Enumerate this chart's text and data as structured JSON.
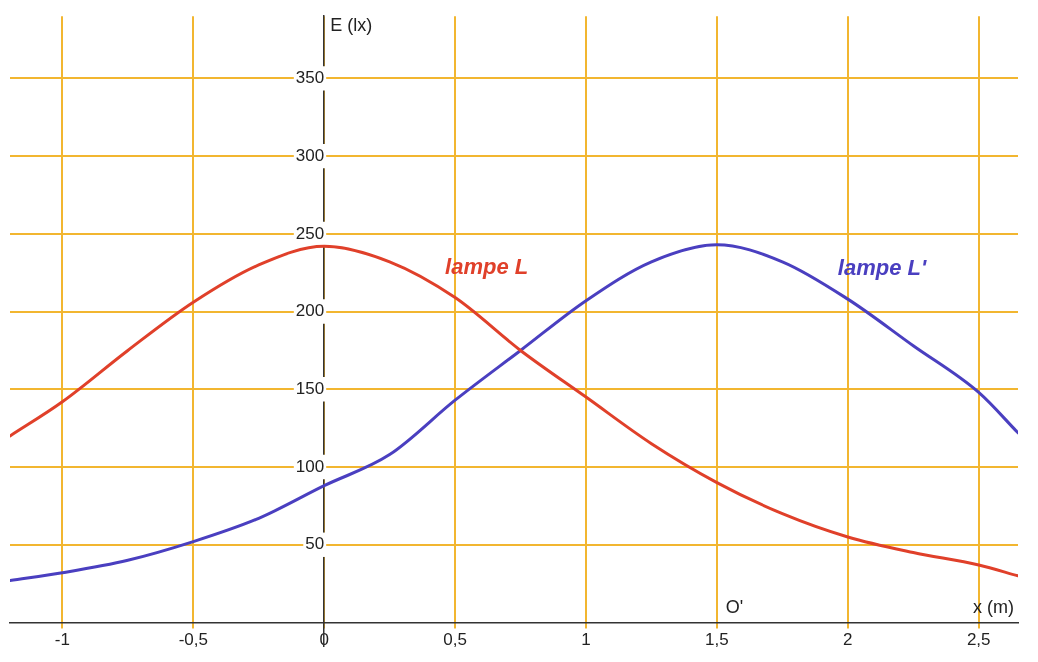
{
  "chart_data": {
    "type": "line",
    "xlabel": "x (m)",
    "ylabel": "E (lx)",
    "xlim": [
      -1.2,
      2.65
    ],
    "ylim": [
      -15,
      390
    ],
    "xticks": [
      {
        "value": -1,
        "label": "-1"
      },
      {
        "value": -0.5,
        "label": "-0,5"
      },
      {
        "value": 0,
        "label": "0"
      },
      {
        "value": 0.5,
        "label": "0,5"
      },
      {
        "value": 1,
        "label": "1"
      },
      {
        "value": 1.5,
        "label": "1,5"
      },
      {
        "value": 2,
        "label": "2"
      },
      {
        "value": 2.5,
        "label": "2,5"
      }
    ],
    "yticks": [
      50,
      100,
      150,
      200,
      250,
      300,
      350
    ],
    "grid": true,
    "legend": false,
    "marker": "none",
    "line_style": "solid",
    "annotations": [
      "O'"
    ],
    "series": [
      {
        "name": "lampe L",
        "color": "#e0402a",
        "x": [
          -1.2,
          -1,
          -0.75,
          -0.5,
          -0.25,
          0,
          0.25,
          0.5,
          0.75,
          1,
          1.25,
          1.5,
          1.75,
          2,
          2.25,
          2.5,
          2.65
        ],
        "values": [
          120,
          142,
          175,
          206,
          230,
          242,
          232,
          209,
          175,
          145,
          115,
          90,
          70,
          55,
          45,
          37,
          30
        ]
      },
      {
        "name": "lampe L'",
        "color": "#4a3fc0",
        "x": [
          -1.2,
          -1,
          -0.75,
          -0.5,
          -0.25,
          0,
          0.25,
          0.5,
          0.75,
          1,
          1.25,
          1.5,
          1.75,
          2,
          2.25,
          2.5,
          2.65
        ],
        "values": [
          27,
          32,
          40,
          52,
          67,
          88,
          108,
          143,
          175,
          207,
          232,
          243,
          232,
          208,
          178,
          148,
          122
        ]
      }
    ]
  }
}
